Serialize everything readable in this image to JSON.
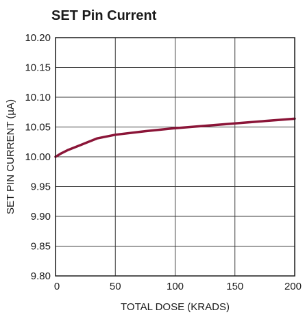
{
  "chart_data": {
    "type": "line",
    "title": "SET Pin Current",
    "xlabel": "TOTAL DOSE (KRADS)",
    "ylabel": "SET PIN CURRENT (µA)",
    "xlim": [
      0,
      200
    ],
    "ylim": [
      9.8,
      10.2
    ],
    "x_ticks": [
      "0",
      "50",
      "100",
      "150",
      "200"
    ],
    "y_ticks": [
      "10.20",
      "10.15",
      "10.10",
      "10.05",
      "10.00",
      "9.95",
      "9.90",
      "9.85",
      "9.80"
    ],
    "grid": true,
    "series_color": "#8b1538",
    "series": [
      {
        "x": [
          0,
          5,
          10,
          20,
          30,
          35,
          50,
          75,
          100,
          125,
          150,
          175,
          200
        ],
        "values": [
          10.0,
          10.006,
          10.011,
          10.019,
          10.027,
          10.031,
          10.037,
          10.043,
          10.048,
          10.052,
          10.056,
          10.06,
          10.064
        ]
      }
    ]
  }
}
